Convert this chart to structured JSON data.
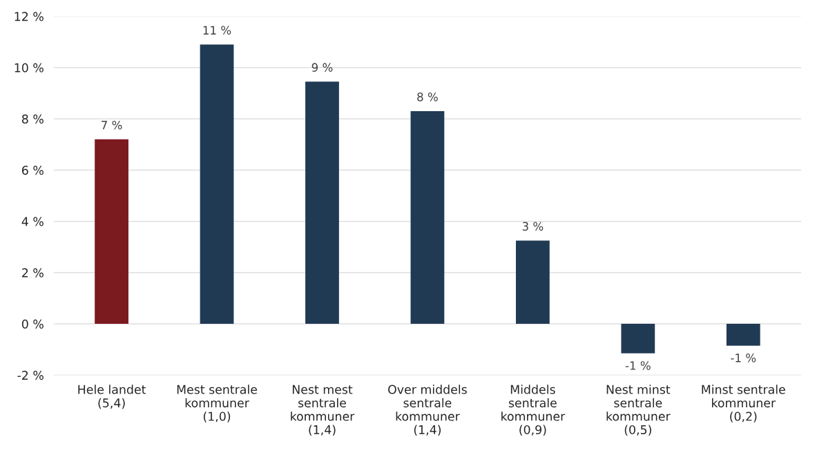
{
  "chart_data": {
    "type": "bar",
    "categories": [
      "Hele landet\n(5,4)",
      "Mest sentrale\nkommuner\n(1,0)",
      "Nest mest\nsentrale\nkommuner\n(1,4)",
      "Over middels\nsentrale\nkommuner\n(1,4)",
      "Middels\nsentrale\nkommuner\n(0,9)",
      "Nest minst\nsentrale\nkommuner\n(0,5)",
      "Minst sentrale\nkommuner\n(0,2)"
    ],
    "values": [
      7.2,
      10.9,
      9.45,
      8.3,
      3.25,
      -1.15,
      -0.85
    ],
    "colors": [
      "#7b1a1f",
      "#213a54",
      "#213a54",
      "#213a54",
      "#213a54",
      "#213a54",
      "#213a54"
    ],
    "value_labels": [
      "7 %",
      "11 %",
      "9 %",
      "8 %",
      "3 %",
      "-1 %",
      "-1 %"
    ],
    "ylim": [
      -2,
      12
    ],
    "yticks": [
      {
        "value": -2,
        "label": "-2 %"
      },
      {
        "value": 0,
        "label": "0 %"
      },
      {
        "value": 2,
        "label": "2 %"
      },
      {
        "value": 4,
        "label": "4 %"
      },
      {
        "value": 6,
        "label": "6 %"
      },
      {
        "value": 8,
        "label": "8 %"
      },
      {
        "value": 10,
        "label": "10 %"
      },
      {
        "value": 12,
        "label": "12 %"
      }
    ],
    "grid": "y"
  }
}
